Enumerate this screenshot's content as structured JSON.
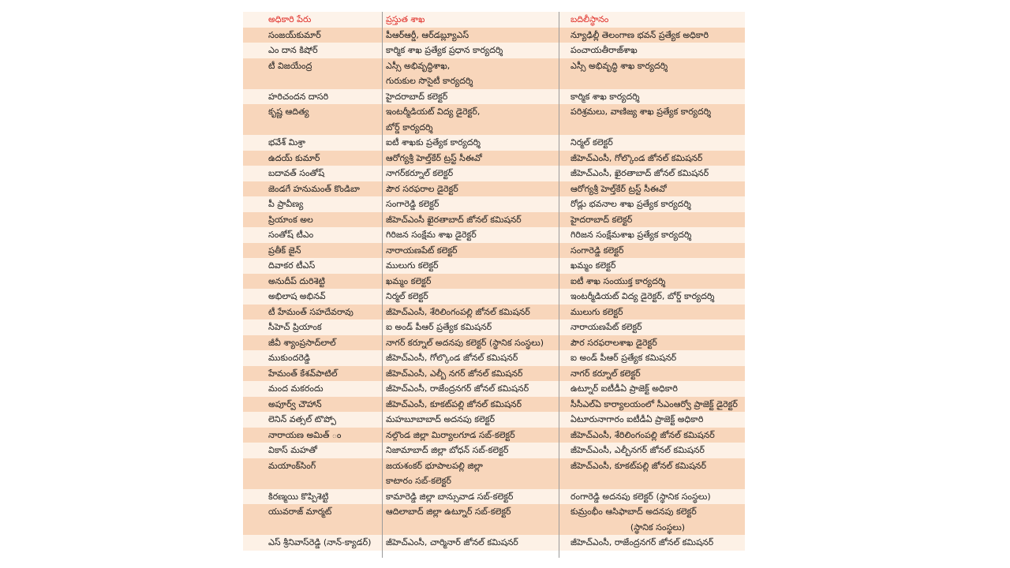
{
  "header": {
    "name": "అధికారి పేరు",
    "current": "ప్రస్తుత శాఖ",
    "transfer": "బదిలీస్థానం"
  },
  "colors": {
    "header_text": "#e0302a",
    "row_dark": "#f8d6bb",
    "row_light": "#fdf1e6"
  },
  "rows": [
    {
      "name": "సంజయ్‌కుమార్",
      "current": [
        "పీఆర్‌ఆర్డీ, ఆర్‌డబ్ల్యూఎస్"
      ],
      "transfer": [
        "న్యూఢిల్లీ తెలంగాణ భవన్ ప్రత్యేక అధికారి"
      ]
    },
    {
      "name": "ఎం దాన కిషోర్",
      "current": [
        "కార్మిక శాఖ ప్రత్యేక ప్రధాన కార్యదర్శి"
      ],
      "transfer": [
        "పంచాయతీరాజ్‌శాఖ"
      ]
    },
    {
      "name": "టీ విజయేంద్ర",
      "current": [
        "ఎస్సీ అభివృద్ధిశాఖ,",
        "గురుకుల సొసైటీ కార్యదర్శి"
      ],
      "transfer": [
        "ఎస్సీ అభివృద్ధి శాఖ కార్యదర్శి"
      ]
    },
    {
      "name": "హరిచందన దాసరి",
      "current": [
        "హైదరాబాద్ కలెక్టర్"
      ],
      "transfer": [
        "కార్మిక శాఖ కార్యదర్శి"
      ]
    },
    {
      "name": "కృష్ణ ఆదిత్య",
      "current": [
        "ఇంటర్మీడియట్ విద్య డైరెక్టర్,",
        "బోర్డ్ కార్యదర్శి"
      ],
      "transfer": [
        "పరిశ్రమలు, వాణిజ్య శాఖ ప్రత్యేక కార్యదర్శి"
      ]
    },
    {
      "name": "భవేశ్ మిశ్రా",
      "current": [
        "ఐటీ శాఖకు ప్రత్యేక కార్యదర్శి"
      ],
      "transfer": [
        "నిర్మల్ కలెక్టర్"
      ]
    },
    {
      "name": "ఉదయ్ కుమార్",
      "current": [
        "ఆరోగ్యశ్రీ హెల్త్‌కేర్ ట్రస్ట్ సీఈవో"
      ],
      "transfer": [
        "జీహెచ్‌ఎంసీ, గోల్కొండ జోనల్ కమిషనర్"
      ]
    },
    {
      "name": "బదావత్ సంతోష్",
      "current": [
        "నాగర్‌కర్నూల్ కలెక్టర్"
      ],
      "transfer": [
        "జీహెచ్‌ఎంసీ, ఖైరతాబాద్ జోనల్ కమిషనర్"
      ]
    },
    {
      "name": "జెండగే హనుమంత్ కొండిబా",
      "current": [
        "పౌర సరఫరాల డైరెక్టర్"
      ],
      "transfer": [
        "ఆరోగ్యశ్రీ హెల్త్‌కేర్ ట్రస్ట్ సీఈవో"
      ]
    },
    {
      "name": "పీ ప్రావీణ్య",
      "current": [
        "సంగారెడ్డి కలెక్టర్"
      ],
      "transfer": [
        "రోడ్లు భవనాల శాఖ ప్రత్యేక కార్యదర్శి"
      ]
    },
    {
      "name": "ప్రియాంక అల",
      "current": [
        "జీహెచ్‌ఎంసీ ఖైరతాబాద్ జోనల్ కమిషనర్"
      ],
      "transfer": [
        "హైదరాబాద్ కలెక్టర్"
      ]
    },
    {
      "name": "సంతోష్ టీఎం",
      "current": [
        "గిరిజన సంక్షేమ శాఖ డైరెక్టర్"
      ],
      "transfer": [
        "గిరిజన సంక్షేమశాఖ ప్రత్యేక కార్యదర్శి"
      ]
    },
    {
      "name": "ప్రతీక్ జైన్",
      "current": [
        "నారాయణపేట్ కలెక్టర్"
      ],
      "transfer": [
        "సంగారెడ్డి కలెక్టర్"
      ]
    },
    {
      "name": "దివాకర టీఎస్",
      "current": [
        "ములుగు కలెక్టర్"
      ],
      "transfer": [
        "ఖమ్మం కలెక్టర్"
      ]
    },
    {
      "name": "అనుదీప్ దురిశెట్టి",
      "current": [
        "ఖమ్మం కలెక్టర్"
      ],
      "transfer": [
        "ఐటీ శాఖ సంయుక్త కార్యదర్శి"
      ]
    },
    {
      "name": "అభిలాష అభినవ్",
      "current": [
        "నిర్మల్ కలెక్టర్"
      ],
      "transfer": [
        "ఇంటర్మీడియట్ విద్య డైరెక్టర్, బోర్డ్ కార్యదర్శి"
      ]
    },
    {
      "name": "టీ హేమంత్ సహదేవరావు",
      "current": [
        "జీహెచ్‌ఎంసీ, శేరిలింగంపల్లి జోనల్ కమిషనర్"
      ],
      "transfer": [
        "ములుగు కలెక్టర్"
      ]
    },
    {
      "name": "సీహెచ్ ప్రియాంక",
      "current": [
        "ఐ అండ్ పీఆర్ ప్రత్యేక కమిషనర్"
      ],
      "transfer": [
        "నారాయణపేట్ కలెక్టర్"
      ]
    },
    {
      "name": "జీవీ శ్యాంప్రసాద్‌లాల్",
      "current": [
        "నాగర్ కర్నూల్ అదనపు కలెక్టర్ (స్థానిక సంస్థలు)"
      ],
      "transfer": [
        "పౌర సరఫరాలశాఖ డైరెక్టర్"
      ]
    },
    {
      "name": "ముకుందరెడ్డి",
      "current": [
        "జీహెచ్‌ఎంసీ, గోల్కొండ జోనల్ కమిషనర్"
      ],
      "transfer": [
        "ఐ అండ్ పీఆర్ ప్రత్యేక కమిషనర్"
      ]
    },
    {
      "name": "హేమంత్ కేశవ్‌పాటిల్",
      "current": [
        "జీహెచ్‌ఎంసీ, ఎల్బీ నగర్ జోనల్ కమిషనర్"
      ],
      "transfer": [
        "నాగర్ కర్నూల్ కలెక్టర్"
      ]
    },
    {
      "name": "మంద మకరందు",
      "current": [
        "జీహెచ్‌ఎంసీ, రాజేంద్రనగర్ జోనల్ కమిషనర్"
      ],
      "transfer": [
        "ఉట్నూర్ ఐటీడీఏ ప్రాజెక్ట్ అధికారి"
      ]
    },
    {
      "name": "అపూర్వ్ చౌహాన్",
      "current": [
        "జీహెచ్‌ఎంసీ, కూకట్‌పల్లి జోనల్ కమిషనర్"
      ],
      "transfer": [
        "సీసీఎల్ఏ కార్యాలయంలో సీఎంఆర్వో ప్రాజెక్ట్ డైరెక్టర్"
      ]
    },
    {
      "name": "లెనిన్ వత్సల్ టొప్పో",
      "current": [
        "మహబూబాబాద్ అదనపు కలెక్టర్"
      ],
      "transfer": [
        "ఏటూరునాగారం ఐటీడీఏ ప్రాజెక్ట్ అధికారి"
      ]
    },
    {
      "name": "నారాయణ అమిత్ ం",
      "current": [
        "నల్గొండ జిల్లా మిర్యాలగూడ సబ్-కలెక్టర్"
      ],
      "transfer": [
        "జీహెచ్‌ఎంసీ, శేరిలింగంపల్లి జోనల్ కమిషనర్"
      ]
    },
    {
      "name": "వికాస్ మహతో",
      "current": [
        "నిజామాబాద్ జిల్లా బోధన్ సబ్-కలెక్టర్"
      ],
      "transfer": [
        "జీహెచ్‌ఎంసీ, ఎల్బీనగర్ జోనల్ కమిషనర్"
      ]
    },
    {
      "name": "మయాంక్‌సింగ్",
      "current": [
        "జయశంకర్ భూపాలపల్లి జిల్లా",
        "కాటారం సబ్-కలెక్టర్"
      ],
      "transfer": [
        "జీహెచ్‌ఎంసీ, కూకట్‌పల్లి జోనల్ కమిషనర్"
      ]
    },
    {
      "name": "కిరణ్మయి కొప్పిశెట్టి",
      "current": [
        "కామారెడ్డి జిల్లా బాన్సువాడ సబ్-కలెక్టర్"
      ],
      "transfer": [
        "రంగారెడ్డి అదనపు కలెక్టర్ (స్థానిక సంస్థలు)"
      ]
    },
    {
      "name": "యువరాజ్ మార్మట్",
      "current": [
        "ఆదిలాబాద్ జిల్లా ఉట్నూర్ సబ్-కలెక్టర్"
      ],
      "transfer": [
        "కుమ్రంభీం ఆసిఫాబాద్ అదనపు కలెక్టర్",
        "(స్థానిక సంస్థలు)"
      ]
    },
    {
      "name": "ఎస్ శ్రీనివాస్‌రెడ్డి (నాన్-క్యాడర్)",
      "current": [
        "జీహెచ్‌ఎంసీ, చార్మినార్ జోనల్ కమిషనర్"
      ],
      "transfer": [
        "జీహెచ్‌ఎంసీ, రాజేంద్రనగర్ జోనల్ కమిషనర్"
      ]
    }
  ]
}
